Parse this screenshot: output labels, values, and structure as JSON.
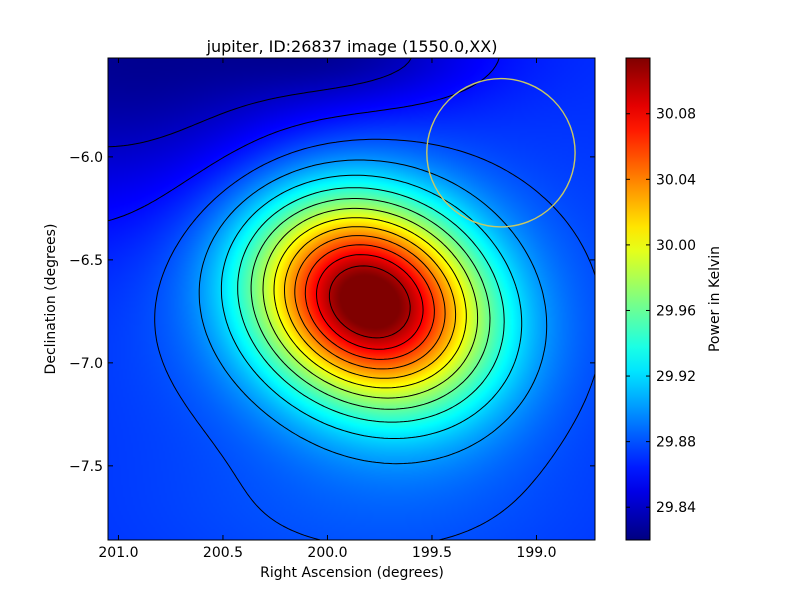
{
  "chart_data": {
    "type": "heatmap",
    "title": "jupiter, ID:26837 image (1550.0,XX)",
    "xlabel": "Right Ascension (degrees)",
    "ylabel": "Declination (degrees)",
    "xlim": [
      201.05,
      198.72
    ],
    "ylim": [
      -7.86,
      -5.52
    ],
    "x_ticks": [
      201.0,
      200.5,
      200.0,
      199.5,
      199.0
    ],
    "x_tick_labels": [
      "201.0",
      "200.5",
      "200.0",
      "199.5",
      "199.0"
    ],
    "y_ticks": [
      -6.0,
      -6.5,
      -7.0,
      -7.5
    ],
    "y_tick_labels": [
      "−6.0",
      "−6.5",
      "−7.0",
      "−7.5"
    ],
    "colormap": "jet",
    "colorbar": {
      "label": "Power in Kelvin",
      "vmin": 29.82,
      "vmax": 30.114,
      "ticks": [
        29.84,
        29.88,
        29.92,
        29.96,
        30.0,
        30.04,
        30.08
      ],
      "tick_labels": [
        "29.84",
        "29.88",
        "29.92",
        "29.96",
        "30.00",
        "30.04",
        "30.08"
      ]
    },
    "peak": {
      "ra": 199.8,
      "dec": -6.7,
      "value": 30.114
    },
    "background_level": 29.87,
    "contour_levels": [
      29.84,
      29.86,
      29.88,
      29.9,
      29.92,
      29.94,
      29.96,
      29.98,
      30.0,
      30.02,
      30.04,
      30.06,
      30.08,
      30.1
    ],
    "beam_circle": {
      "ra": 199.17,
      "dec": -5.98,
      "radius_deg": 0.36,
      "color": "#c8c864"
    }
  }
}
